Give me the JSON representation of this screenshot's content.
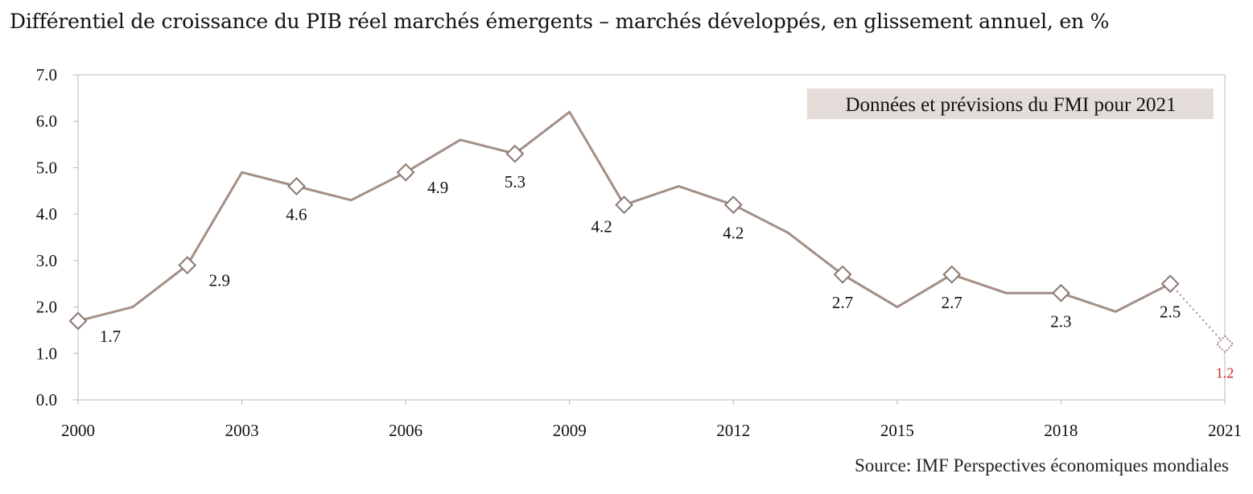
{
  "chart_data": {
    "type": "line",
    "title": "Différentiel de croissance du PIB réel marchés émergents – marchés développés, en glissement annuel, en %",
    "source": "Source: IMF Perspectives économiques mondiales",
    "annotation": "Données et prévisions du FMI pour 2021",
    "ylim": [
      0,
      7
    ],
    "xlim": [
      2000,
      2021
    ],
    "grid": false,
    "y_ticks": [
      "0.0",
      "1.0",
      "2.0",
      "3.0",
      "4.0",
      "5.0",
      "6.0",
      "7.0"
    ],
    "x_ticks": [
      "2000",
      "2003",
      "2006",
      "2009",
      "2012",
      "2015",
      "2018",
      "2021"
    ],
    "series": [
      {
        "x": [
          2000,
          2001,
          2002,
          2003,
          2004,
          2005,
          2006,
          2007,
          2008,
          2009,
          2010,
          2011,
          2012,
          2013,
          2014,
          2015,
          2016,
          2017,
          2018,
          2019,
          2020
        ],
        "values": [
          1.7,
          2.0,
          2.9,
          4.9,
          4.6,
          4.3,
          4.9,
          5.6,
          5.3,
          6.2,
          4.2,
          4.6,
          4.2,
          3.6,
          2.7,
          2.0,
          2.7,
          2.3,
          2.3,
          1.9,
          2.5
        ],
        "color": "#a28f86"
      },
      {
        "x": [
          2020,
          2021
        ],
        "values": [
          2.5,
          1.2
        ],
        "color": "#a28f86",
        "style": "dotted"
      }
    ],
    "data_labels": [
      {
        "x": 2000,
        "y": 1.7,
        "text": "1.7",
        "pos": "right-below"
      },
      {
        "x": 2002,
        "y": 2.9,
        "text": "2.9",
        "pos": "right-below"
      },
      {
        "x": 2004,
        "y": 4.6,
        "text": "4.6",
        "pos": "below"
      },
      {
        "x": 2006,
        "y": 4.9,
        "text": "4.9",
        "pos": "right-below"
      },
      {
        "x": 2008,
        "y": 5.3,
        "text": "5.3",
        "pos": "below"
      },
      {
        "x": 2010,
        "y": 4.2,
        "text": "4.2",
        "pos": "left-below"
      },
      {
        "x": 2012,
        "y": 4.2,
        "text": "4.2",
        "pos": "below"
      },
      {
        "x": 2014,
        "y": 2.7,
        "text": "2.7",
        "pos": "below"
      },
      {
        "x": 2016,
        "y": 2.7,
        "text": "2.7",
        "pos": "below"
      },
      {
        "x": 2018,
        "y": 2.3,
        "text": "2.3",
        "pos": "below"
      },
      {
        "x": 2020,
        "y": 2.5,
        "text": "2.5",
        "pos": "below"
      },
      {
        "x": 2021,
        "y": 1.2,
        "text": "1.2",
        "pos": "below",
        "forecast": true
      }
    ],
    "colors": {
      "line": "#a28f86",
      "axis": "#b8b8b8",
      "annotation_bg": "#e3dcd8",
      "forecast_label": "#d42020"
    }
  }
}
